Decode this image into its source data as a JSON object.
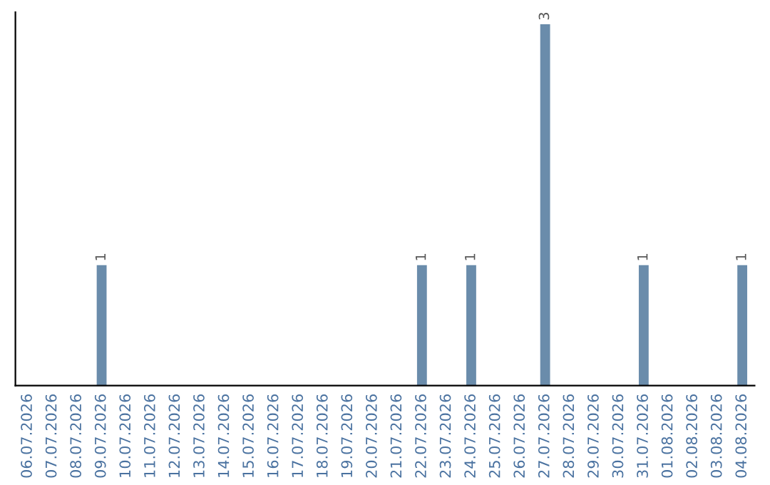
{
  "chart_data": {
    "type": "bar",
    "categories": [
      "06.07.2026",
      "07.07.2026",
      "08.07.2026",
      "09.07.2026",
      "10.07.2026",
      "11.07.2026",
      "12.07.2026",
      "13.07.2026",
      "14.07.2026",
      "15.07.2026",
      "16.07.2026",
      "17.07.2026",
      "18.07.2026",
      "19.07.2026",
      "20.07.2026",
      "21.07.2026",
      "22.07.2026",
      "23.07.2026",
      "24.07.2026",
      "25.07.2026",
      "26.07.2026",
      "27.07.2026",
      "28.07.2026",
      "29.07.2026",
      "30.07.2026",
      "31.07.2026",
      "01.08.2026",
      "02.08.2026",
      "03.08.2026",
      "04.08.2026"
    ],
    "values": [
      0,
      0,
      0,
      1,
      0,
      0,
      0,
      0,
      0,
      0,
      0,
      0,
      0,
      0,
      0,
      0,
      1,
      0,
      1,
      0,
      0,
      3,
      0,
      0,
      0,
      1,
      0,
      0,
      0,
      1
    ],
    "value_labels": [
      null,
      null,
      null,
      "1",
      null,
      null,
      null,
      null,
      null,
      null,
      null,
      null,
      null,
      null,
      null,
      null,
      "1",
      null,
      "1",
      null,
      null,
      "3",
      null,
      null,
      null,
      "1",
      null,
      null,
      null,
      "1"
    ],
    "color": "#6a8cab",
    "ylim": [
      0,
      3.1
    ],
    "tick_labels": "x",
    "grid": false,
    "legend": false
  }
}
